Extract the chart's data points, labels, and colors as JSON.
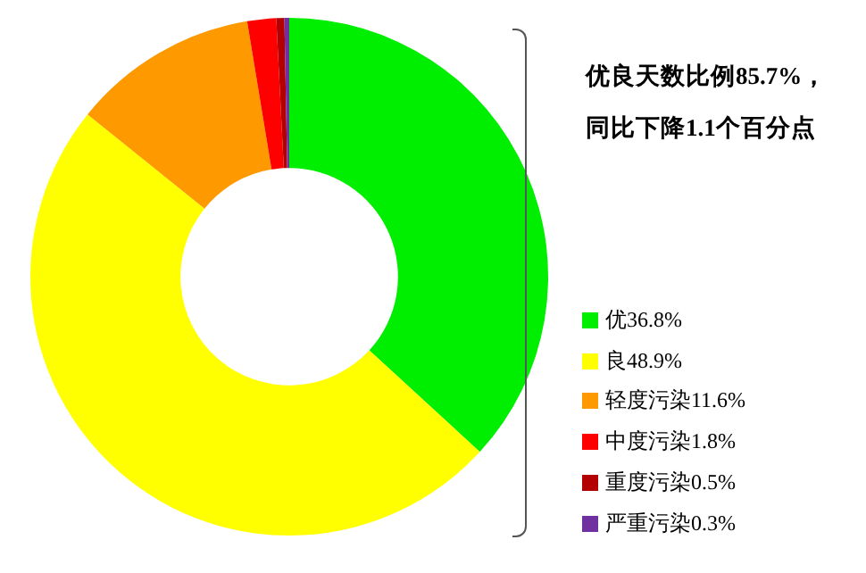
{
  "chart_data": {
    "type": "donut",
    "categories": [
      "优",
      "良",
      "轻度污染",
      "中度污染",
      "重度污染",
      "严重污染"
    ],
    "values": [
      36.8,
      48.9,
      11.6,
      1.8,
      0.5,
      0.3
    ],
    "value_labels": [
      "36.8%",
      "48.9%",
      "11.6%",
      "1.8%",
      "0.5%",
      "0.3%"
    ],
    "colors": [
      "#00ee00",
      "#ffff00",
      "#ff9900",
      "#ff0000",
      "#b30000",
      "#7030a0"
    ],
    "legend": "right",
    "annotations": [
      "优良天数比例85.7%，",
      "同比下降1.1个百分点"
    ]
  }
}
